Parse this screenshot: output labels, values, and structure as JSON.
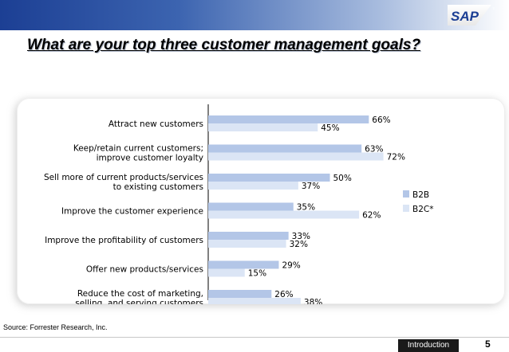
{
  "slide": {
    "title": "What are your top three customer management goals?",
    "source": "Source: Forrester Research, Inc.",
    "section_tab": "Introduction",
    "page_number": "5",
    "logo_text": "SAP",
    "logo_tm": "TM"
  },
  "colors": {
    "b2b": "#b3c6e7",
    "b2c": "#dbe5f5",
    "header_dark": "#1c3f94",
    "logo_gold": "#f0ab00"
  },
  "chart_data": {
    "type": "bar",
    "orientation": "horizontal",
    "categories": [
      [
        "Attract new customers"
      ],
      [
        "Keep/retain current customers;",
        "improve customer loyalty"
      ],
      [
        "Sell more of current products/services",
        "to existing customers"
      ],
      [
        "Improve the customer experience"
      ],
      [
        "Improve the profitability of customers"
      ],
      [
        "Offer new products/services"
      ],
      [
        "Reduce the cost of marketing,",
        "selling, and serving customers"
      ]
    ],
    "series": [
      {
        "name": "B2B",
        "values": [
          66,
          63,
          50,
          35,
          33,
          29,
          26
        ]
      },
      {
        "name": "B2C*",
        "values": [
          45,
          72,
          37,
          62,
          32,
          15,
          38
        ]
      }
    ],
    "value_suffix": "%",
    "xlim": [
      0,
      100
    ],
    "legend_position": "right",
    "grid": false
  }
}
